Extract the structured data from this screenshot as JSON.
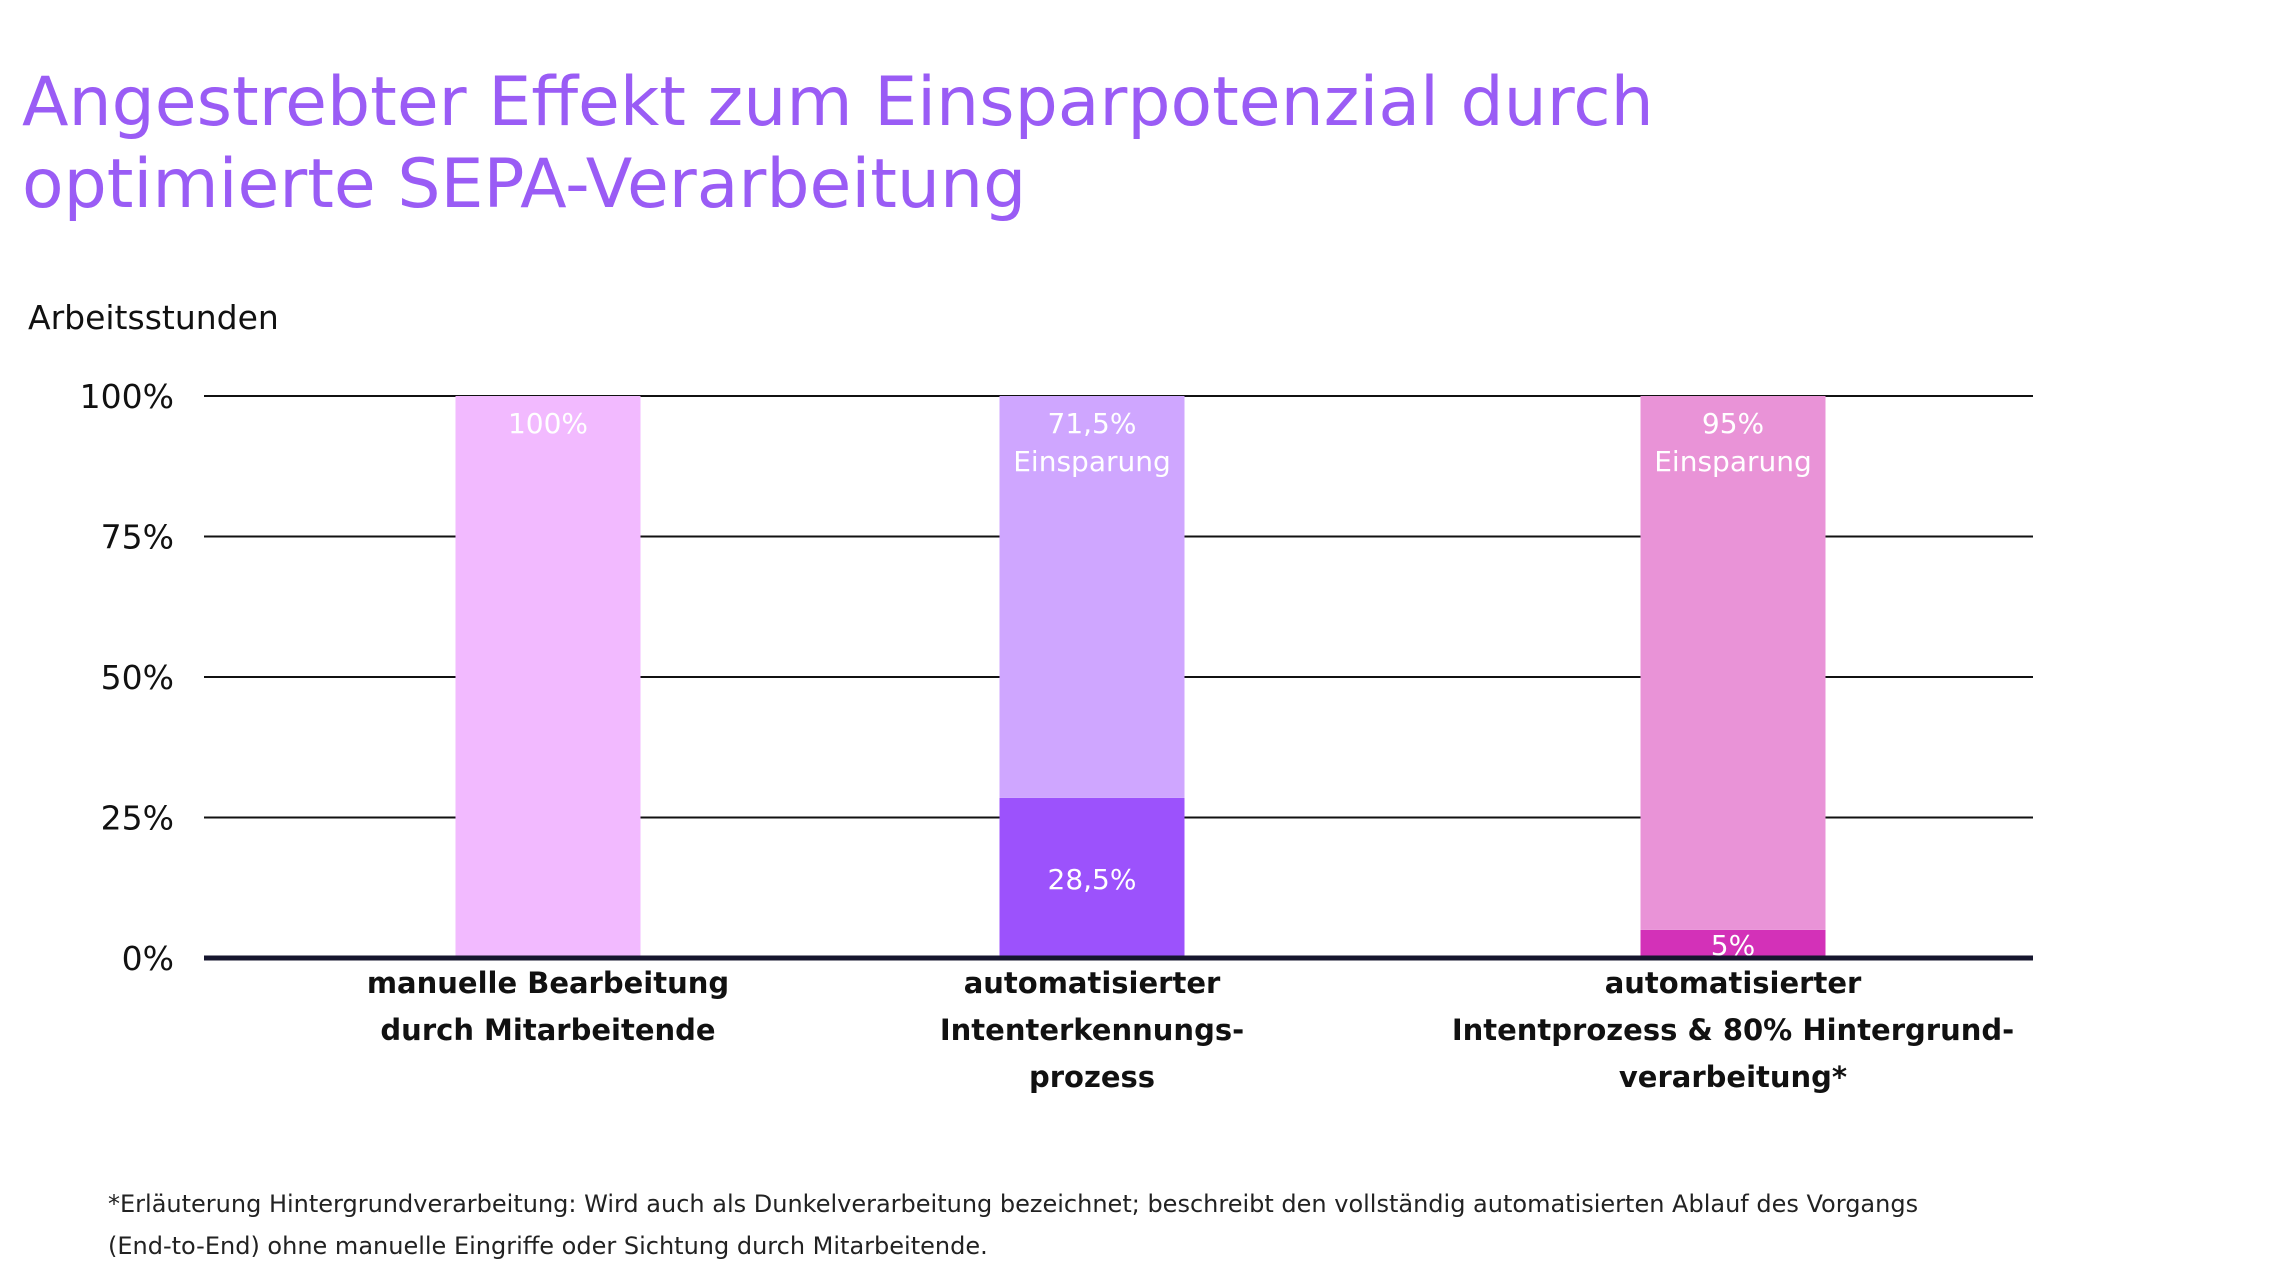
{
  "title_lines": [
    "Angestrebter Effekt zum Einsparpotenzial durch",
    "optimierte SEPA-Verarbeitung"
  ],
  "footnote_lines": [
    "*Erläuterung Hintergrundverarbeitung: Wird auch als Dunkelverarbeitung bezeichnet; beschreibt den vollständig automatisierten Ablauf des Vorgangs",
    "(End-to-End) ohne manuelle Eingriffe oder Sichtung durch Mitarbeitende."
  ],
  "chart_data": {
    "type": "bar",
    "stacked": true,
    "ylabel": "Arbeitsstunden",
    "ylim": [
      0,
      100
    ],
    "yticks": [
      "0%",
      "25%",
      "50%",
      "75%",
      "100%"
    ],
    "ytick_values": [
      0,
      25,
      50,
      75,
      100
    ],
    "grid": true,
    "categories": [
      {
        "label_lines": [
          "manuelle Bearbeitung",
          "durch Mitarbeitende"
        ]
      },
      {
        "label_lines": [
          "automatisierter",
          "Intenterkennungs-",
          "prozess"
        ]
      },
      {
        "label_lines": [
          "automatisierter",
          "Intentprozess & 80% Hintergrund-",
          "verarbeitung*"
        ]
      }
    ],
    "bars": [
      {
        "segments": [
          {
            "value": 100,
            "color": "#f2baff",
            "label_lines": [
              "100%"
            ],
            "label_pos": "top"
          }
        ]
      },
      {
        "segments": [
          {
            "value": 28.5,
            "color": "#9c52fc",
            "label_lines": [
              "28,5%"
            ],
            "label_pos": "middle"
          },
          {
            "value": 71.5,
            "color": "#cfa6ff",
            "label_lines": [
              "71,5%",
              "Einsparung"
            ],
            "label_pos": "top"
          }
        ]
      },
      {
        "segments": [
          {
            "value": 5,
            "color": "#d331b8",
            "label_lines": [
              "5%"
            ],
            "label_pos": "middle"
          },
          {
            "value": 95,
            "color": "#e993d7",
            "label_lines": [
              "95%",
              "Einsparung"
            ],
            "label_pos": "top"
          }
        ]
      }
    ]
  }
}
